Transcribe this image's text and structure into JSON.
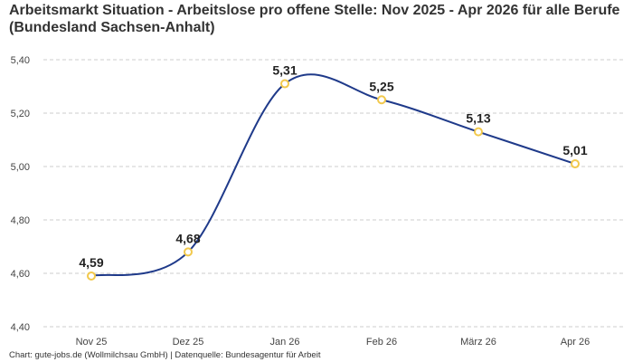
{
  "chart_data": {
    "type": "line",
    "title": "Arbeitsmarkt Situation - Arbeitslose pro offene Stelle: Nov 2025 - Apr 2026 für alle Berufe (Bundesland Sachsen-Anhalt)",
    "categories": [
      "Nov 25",
      "Dez 25",
      "Jan 26",
      "Feb 26",
      "März 26",
      "Apr 26"
    ],
    "series": [
      {
        "values": [
          4.59,
          4.68,
          5.31,
          5.25,
          5.13,
          5.01
        ]
      }
    ],
    "data_labels": [
      "4,59",
      "4,68",
      "5,31",
      "5,25",
      "5,13",
      "5,01"
    ],
    "y_ticks": [
      4.4,
      4.6,
      4.8,
      5.0,
      5.2,
      5.4
    ],
    "y_tick_labels": [
      "4,40",
      "4,60",
      "4,80",
      "5,00",
      "5,20",
      "5,40"
    ],
    "ylim": [
      4.4,
      5.4
    ],
    "grid": true,
    "line_color": "#1f3a8a",
    "marker_color": "#f2c94c",
    "grid_color": "#cccccc"
  },
  "footer": "Chart: gute-jobs.de (Wollmilchsau GmbH) | Datenquelle: Bundesagentur für Arbeit"
}
